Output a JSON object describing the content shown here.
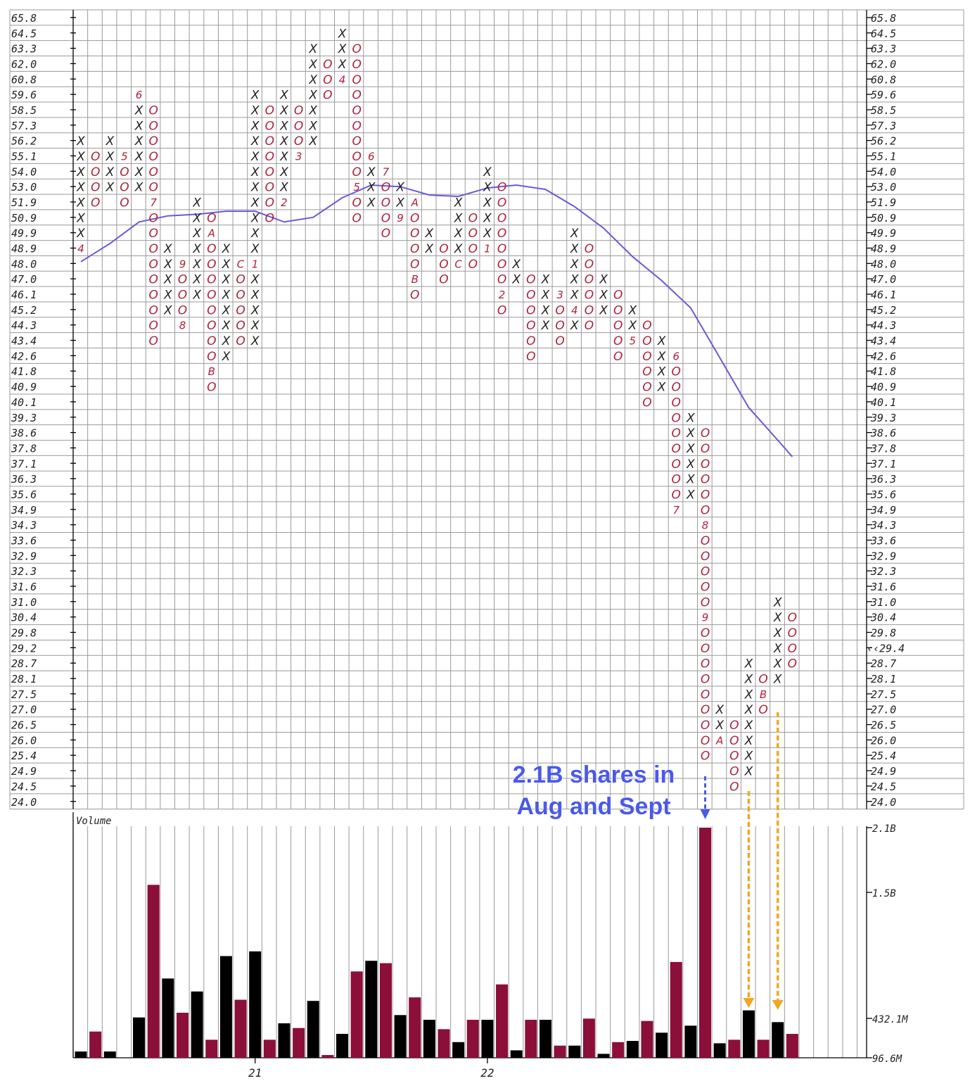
{
  "chart_data": {
    "type": "point-and-figure",
    "price_levels": [
      "65.8",
      "64.5",
      "63.3",
      "62.0",
      "60.8",
      "59.6",
      "58.5",
      "57.3",
      "56.2",
      "55.1",
      "54.0",
      "53.0",
      "51.9",
      "50.9",
      "49.9",
      "48.9",
      "48.0",
      "47.0",
      "46.1",
      "45.2",
      "44.3",
      "43.4",
      "42.6",
      "41.8",
      "40.9",
      "40.1",
      "39.3",
      "38.6",
      "37.8",
      "37.1",
      "36.3",
      "35.6",
      "34.9",
      "34.3",
      "33.6",
      "32.9",
      "32.3",
      "31.6",
      "31.0",
      "30.4",
      "29.8",
      "29.2",
      "28.7",
      "28.1",
      "27.5",
      "27.0",
      "26.5",
      "26.0",
      "25.4",
      "24.9",
      "24.5",
      "24.0"
    ],
    "left_highlight_level": "29.2",
    "current_price_label": "‹‹29.4",
    "columns": [
      {
        "col": 0,
        "type": "X",
        "top": "56.2",
        "bottom": "49.9",
        "markers": [
          [
            "48.9",
            "4"
          ]
        ]
      },
      {
        "col": 1,
        "type": "O",
        "top": "55.1",
        "bottom": "51.9"
      },
      {
        "col": 2,
        "type": "X",
        "top": "56.2",
        "bottom": "53.0"
      },
      {
        "col": 3,
        "type": "O",
        "top": "55.1",
        "bottom": "51.9",
        "markers": [
          [
            "55.1",
            "5"
          ]
        ]
      },
      {
        "col": 4,
        "type": "X",
        "top": "58.5",
        "bottom": "53.0",
        "markers": [
          [
            "59.6",
            "6"
          ]
        ]
      },
      {
        "col": 5,
        "type": "O",
        "top": "58.5",
        "bottom": "43.4",
        "markers": [
          [
            "51.9",
            "7"
          ]
        ]
      },
      {
        "col": 6,
        "type": "X",
        "top": "48.9",
        "bottom": "45.2"
      },
      {
        "col": 7,
        "type": "O",
        "top": "47.0",
        "bottom": "45.2",
        "markers": [
          [
            "48.0",
            "9"
          ],
          [
            "44.3",
            "8"
          ]
        ]
      },
      {
        "col": 8,
        "type": "X",
        "top": "51.9",
        "bottom": "46.1"
      },
      {
        "col": 9,
        "type": "O",
        "top": "50.9",
        "bottom": "40.9",
        "markers": [
          [
            "49.9",
            "A"
          ],
          [
            "41.8",
            "B"
          ]
        ]
      },
      {
        "col": 10,
        "type": "X",
        "top": "48.9",
        "bottom": "42.6"
      },
      {
        "col": 11,
        "type": "O",
        "top": "47.0",
        "bottom": "43.4",
        "markers": [
          [
            "48.0",
            "C"
          ]
        ]
      },
      {
        "col": 12,
        "type": "X",
        "top": "59.6",
        "bottom": "43.4",
        "markers": [
          [
            "48.0",
            "1"
          ]
        ]
      },
      {
        "col": 13,
        "type": "O",
        "top": "58.5",
        "bottom": "50.9"
      },
      {
        "col": 14,
        "type": "X",
        "top": "59.6",
        "bottom": "53.0",
        "markers": [
          [
            "51.9",
            "2"
          ]
        ]
      },
      {
        "col": 15,
        "type": "O",
        "top": "58.5",
        "bottom": "56.2",
        "markers": [
          [
            "55.1",
            "3"
          ]
        ]
      },
      {
        "col": 16,
        "type": "X",
        "top": "63.3",
        "bottom": "56.2"
      },
      {
        "col": 17,
        "type": "O",
        "top": "62.0",
        "bottom": "59.6"
      },
      {
        "col": 18,
        "type": "X",
        "top": "64.5",
        "bottom": "62.0",
        "markers": [
          [
            "60.8",
            "4"
          ]
        ]
      },
      {
        "col": 19,
        "type": "O",
        "top": "63.3",
        "bottom": "50.9",
        "markers": [
          [
            "53.0",
            "5"
          ]
        ]
      },
      {
        "col": 20,
        "type": "X",
        "top": "54.0",
        "bottom": "51.9",
        "markers": [
          [
            "55.1",
            "6"
          ]
        ]
      },
      {
        "col": 21,
        "type": "O",
        "top": "53.0",
        "bottom": "49.9",
        "markers": [
          [
            "54.0",
            "7"
          ]
        ]
      },
      {
        "col": 22,
        "type": "X",
        "top": "53.0",
        "bottom": "51.9",
        "markers": [
          [
            "50.9",
            "9"
          ]
        ]
      },
      {
        "col": 23,
        "type": "O",
        "top": "50.9",
        "bottom": "46.1",
        "markers": [
          [
            "51.9",
            "A"
          ],
          [
            "47.0",
            "B"
          ]
        ]
      },
      {
        "col": 24,
        "type": "X",
        "top": "49.9",
        "bottom": "48.9"
      },
      {
        "col": 25,
        "type": "O",
        "top": "48.9",
        "bottom": "47.0"
      },
      {
        "col": 26,
        "type": "X",
        "top": "51.9",
        "bottom": "48.9",
        "markers": [
          [
            "48.0",
            "C"
          ]
        ]
      },
      {
        "col": 27,
        "type": "O",
        "top": "50.9",
        "bottom": "48.0"
      },
      {
        "col": 28,
        "type": "X",
        "top": "54.0",
        "bottom": "49.9",
        "markers": [
          [
            "48.9",
            "1"
          ]
        ]
      },
      {
        "col": 29,
        "type": "O",
        "top": "53.0",
        "bottom": "45.2",
        "markers": [
          [
            "46.1",
            "2"
          ]
        ]
      },
      {
        "col": 30,
        "type": "X",
        "top": "48.0",
        "bottom": "47.0"
      },
      {
        "col": 31,
        "type": "O",
        "top": "47.0",
        "bottom": "42.6"
      },
      {
        "col": 32,
        "type": "X",
        "top": "47.0",
        "bottom": "44.3"
      },
      {
        "col": 33,
        "type": "O",
        "top": "45.2",
        "bottom": "43.4",
        "markers": [
          [
            "46.1",
            "3"
          ]
        ]
      },
      {
        "col": 34,
        "type": "X",
        "top": "49.9",
        "bottom": "44.3",
        "markers": [
          [
            "45.2",
            "4"
          ]
        ]
      },
      {
        "col": 35,
        "type": "O",
        "top": "48.9",
        "bottom": "44.3"
      },
      {
        "col": 36,
        "type": "X",
        "top": "47.0",
        "bottom": "45.2"
      },
      {
        "col": 37,
        "type": "O",
        "top": "46.1",
        "bottom": "42.6"
      },
      {
        "col": 38,
        "type": "X",
        "top": "45.2",
        "bottom": "44.3",
        "markers": [
          [
            "43.4",
            "5"
          ]
        ]
      },
      {
        "col": 39,
        "type": "O",
        "top": "44.3",
        "bottom": "40.1"
      },
      {
        "col": 40,
        "type": "X",
        "top": "43.4",
        "bottom": "40.9"
      },
      {
        "col": 41,
        "type": "O",
        "top": "41.8",
        "bottom": "35.6",
        "markers": [
          [
            "42.6",
            "6"
          ],
          [
            "34.9",
            "7"
          ]
        ]
      },
      {
        "col": 42,
        "type": "X",
        "top": "39.3",
        "bottom": "35.6"
      },
      {
        "col": 43,
        "type": "O",
        "top": "38.6",
        "bottom": "25.4",
        "markers": [
          [
            "34.3",
            "8"
          ],
          [
            "30.4",
            "9"
          ]
        ]
      },
      {
        "col": 44,
        "type": "X",
        "top": "27.0",
        "bottom": "26.5",
        "markers": [
          [
            "26.0",
            "A"
          ]
        ]
      },
      {
        "col": 45,
        "type": "O",
        "top": "26.5",
        "bottom": "24.5"
      },
      {
        "col": 46,
        "type": "X",
        "top": "28.7",
        "bottom": "24.9"
      },
      {
        "col": 47,
        "type": "O",
        "top": "28.1",
        "bottom": "27.0",
        "markers": [
          [
            "27.5",
            "B"
          ]
        ]
      },
      {
        "col": 48,
        "type": "X",
        "top": "31.0",
        "bottom": "28.1"
      },
      {
        "col": 49,
        "type": "O",
        "top": "30.4",
        "bottom": "28.7"
      }
    ],
    "moving_average": {
      "color": "#6a5ad8",
      "points": [
        [
          0,
          48.1
        ],
        [
          2,
          49.2
        ],
        [
          4,
          50.6
        ],
        [
          6,
          51.0
        ],
        [
          8,
          51.1
        ],
        [
          10,
          51.3
        ],
        [
          12,
          51.3
        ],
        [
          14,
          50.6
        ],
        [
          16,
          50.9
        ],
        [
          18,
          52.2
        ],
        [
          20,
          53.1
        ],
        [
          22,
          53.0
        ],
        [
          24,
          52.4
        ],
        [
          26,
          52.3
        ],
        [
          28,
          52.9
        ],
        [
          30,
          53.1
        ],
        [
          32,
          52.8
        ],
        [
          34,
          51.6
        ],
        [
          36,
          50.2
        ],
        [
          38,
          48.4
        ],
        [
          40,
          46.9
        ],
        [
          42,
          45.3
        ],
        [
          44,
          42.5
        ],
        [
          46,
          39.8
        ],
        [
          48,
          38.2
        ],
        [
          49,
          37.4
        ]
      ]
    },
    "volume": {
      "label": "Volume",
      "axis_labels": [
        "2.1B",
        "1.5B",
        "432.1M",
        "96.6M"
      ],
      "axis_values": [
        2100,
        1500,
        432.1,
        96.6
      ],
      "bars": [
        {
          "col": 0,
          "value": 150,
          "type": "X"
        },
        {
          "col": 1,
          "value": 320,
          "type": "O"
        },
        {
          "col": 2,
          "value": 150,
          "type": "X"
        },
        {
          "col": 4,
          "value": 440,
          "type": "X"
        },
        {
          "col": 5,
          "value": 1570,
          "type": "O"
        },
        {
          "col": 6,
          "value": 770,
          "type": "X"
        },
        {
          "col": 7,
          "value": 480,
          "type": "O"
        },
        {
          "col": 8,
          "value": 660,
          "type": "X"
        },
        {
          "col": 9,
          "value": 250,
          "type": "O"
        },
        {
          "col": 10,
          "value": 960,
          "type": "X"
        },
        {
          "col": 11,
          "value": 590,
          "type": "O"
        },
        {
          "col": 12,
          "value": 1000,
          "type": "X"
        },
        {
          "col": 13,
          "value": 250,
          "type": "O"
        },
        {
          "col": 14,
          "value": 390,
          "type": "X"
        },
        {
          "col": 15,
          "value": 350,
          "type": "O"
        },
        {
          "col": 16,
          "value": 580,
          "type": "X"
        },
        {
          "col": 17,
          "value": 120,
          "type": "O"
        },
        {
          "col": 18,
          "value": 300,
          "type": "X"
        },
        {
          "col": 19,
          "value": 830,
          "type": "O"
        },
        {
          "col": 20,
          "value": 920,
          "type": "X"
        },
        {
          "col": 21,
          "value": 900,
          "type": "O"
        },
        {
          "col": 22,
          "value": 460,
          "type": "X"
        },
        {
          "col": 23,
          "value": 610,
          "type": "O"
        },
        {
          "col": 24,
          "value": 420,
          "type": "X"
        },
        {
          "col": 25,
          "value": 340,
          "type": "O"
        },
        {
          "col": 26,
          "value": 230,
          "type": "X"
        },
        {
          "col": 27,
          "value": 420,
          "type": "O"
        },
        {
          "col": 28,
          "value": 420,
          "type": "X"
        },
        {
          "col": 29,
          "value": 720,
          "type": "O"
        },
        {
          "col": 30,
          "value": 160,
          "type": "X"
        },
        {
          "col": 31,
          "value": 420,
          "type": "O"
        },
        {
          "col": 32,
          "value": 420,
          "type": "X"
        },
        {
          "col": 33,
          "value": 200,
          "type": "O"
        },
        {
          "col": 34,
          "value": 200,
          "type": "X"
        },
        {
          "col": 35,
          "value": 430,
          "type": "O"
        },
        {
          "col": 36,
          "value": 130,
          "type": "X"
        },
        {
          "col": 37,
          "value": 230,
          "type": "O"
        },
        {
          "col": 38,
          "value": 240,
          "type": "X"
        },
        {
          "col": 39,
          "value": 410,
          "type": "O"
        },
        {
          "col": 40,
          "value": 310,
          "type": "X"
        },
        {
          "col": 41,
          "value": 910,
          "type": "O"
        },
        {
          "col": 42,
          "value": 370,
          "type": "X"
        },
        {
          "col": 43,
          "value": 2100,
          "type": "O"
        },
        {
          "col": 44,
          "value": 220,
          "type": "X"
        },
        {
          "col": 45,
          "value": 250,
          "type": "O"
        },
        {
          "col": 46,
          "value": 500,
          "type": "X"
        },
        {
          "col": 47,
          "value": 250,
          "type": "O"
        },
        {
          "col": 48,
          "value": 400,
          "type": "X"
        },
        {
          "col": 49,
          "value": 300,
          "type": "O"
        }
      ]
    },
    "date_labels": [
      {
        "col": 12,
        "text": "21"
      },
      {
        "col": 28,
        "text": "22"
      }
    ],
    "annotations": {
      "text_line1": "2.1B shares in",
      "text_line2": "Aug and Sept",
      "blue_arrow_col": 43,
      "orange_arrow_cols": [
        46,
        48
      ],
      "blue_color": "#4a5ae6",
      "orange_color": "#f0a820"
    }
  },
  "colors": {
    "x_symbol": "#222222",
    "o_symbol": "#b0203a",
    "grid": "#9a9a9a",
    "volume_up": "#000000",
    "volume_down": "#8b0f38"
  }
}
